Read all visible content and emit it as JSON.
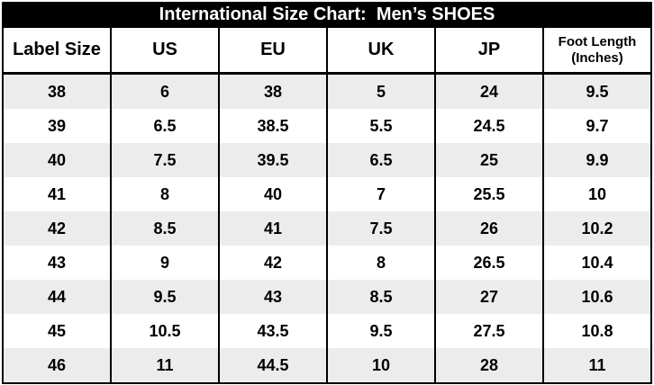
{
  "title": "International Size Chart:  Men’s SHOES",
  "colors": {
    "title_bg": "#000000",
    "title_text": "#ffffff",
    "border": "#000000",
    "stripe_gray": "#ECECEC",
    "stripe_white": "#ffffff",
    "body_text": "#000000"
  },
  "table": {
    "columns": [
      {
        "id": "label-size",
        "label": "Label Size"
      },
      {
        "id": "us",
        "label": "US"
      },
      {
        "id": "eu",
        "label": "EU"
      },
      {
        "id": "uk",
        "label": "UK"
      },
      {
        "id": "jp",
        "label": "JP"
      },
      {
        "id": "foot-length",
        "label": "Foot Length",
        "label_line2": "(Inches)",
        "small": true
      }
    ],
    "rows": [
      [
        "38",
        "6",
        "38",
        "5",
        "24",
        "9.5"
      ],
      [
        "39",
        "6.5",
        "38.5",
        "5.5",
        "24.5",
        "9.7"
      ],
      [
        "40",
        "7.5",
        "39.5",
        "6.5",
        "25",
        "9.9"
      ],
      [
        "41",
        "8",
        "40",
        "7",
        "25.5",
        "10"
      ],
      [
        "42",
        "8.5",
        "41",
        "7.5",
        "26",
        "10.2"
      ],
      [
        "43",
        "9",
        "42",
        "8",
        "26.5",
        "10.4"
      ],
      [
        "44",
        "9.5",
        "43",
        "8.5",
        "27",
        "10.6"
      ],
      [
        "45",
        "10.5",
        "43.5",
        "9.5",
        "27.5",
        "10.8"
      ],
      [
        "46",
        "11",
        "44.5",
        "10",
        "28",
        "11"
      ]
    ]
  }
}
